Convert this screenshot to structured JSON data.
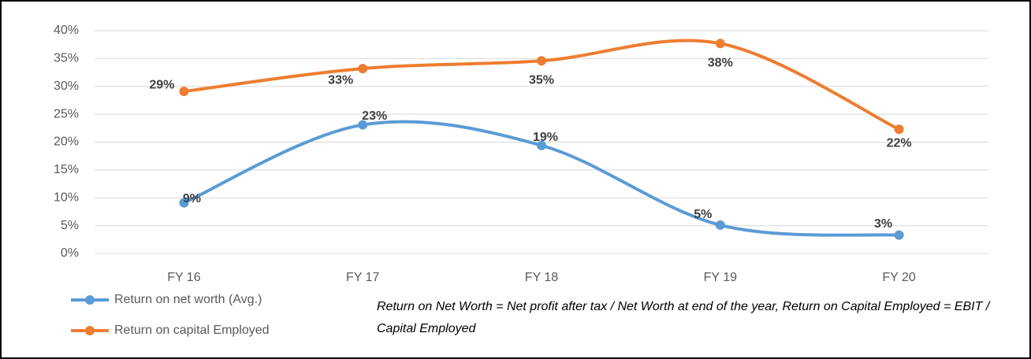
{
  "chart_data": {
    "type": "line",
    "categories": [
      "FY 16",
      "FY 17",
      "FY 18",
      "FY 19",
      "FY 20"
    ],
    "series": [
      {
        "name": "Return on net worth (Avg.)",
        "color": "#5b9bd5",
        "values": [
          9.1,
          23.1,
          19.4,
          5.1,
          3.3
        ],
        "value_labels": [
          "9%",
          "23%",
          "19%",
          "5%",
          "3%"
        ]
      },
      {
        "name": "Return on capital Employed",
        "color": "#ed7d31",
        "values": [
          29.1,
          33.2,
          34.6,
          37.7,
          22.3
        ],
        "value_labels": [
          "29%",
          "33%",
          "35%",
          "38%",
          "22%"
        ]
      }
    ],
    "ylim": [
      0,
      40
    ],
    "yticks": [
      {
        "value": 0,
        "label": "0%"
      },
      {
        "value": 5,
        "label": "5%"
      },
      {
        "value": 10,
        "label": "10%"
      },
      {
        "value": 15,
        "label": "15%"
      },
      {
        "value": 20,
        "label": "20%"
      },
      {
        "value": 25,
        "label": "25%"
      },
      {
        "value": 30,
        "label": "30%"
      },
      {
        "value": 35,
        "label": "35%"
      },
      {
        "value": 40,
        "label": "40%"
      }
    ],
    "grid": true,
    "smooth": true,
    "legend": "bottom-left",
    "annotation": "Return on Net Worth = Net profit after tax / Net Worth at end of the year, Return on Capital Employed = EBIT / Capital Employed"
  }
}
